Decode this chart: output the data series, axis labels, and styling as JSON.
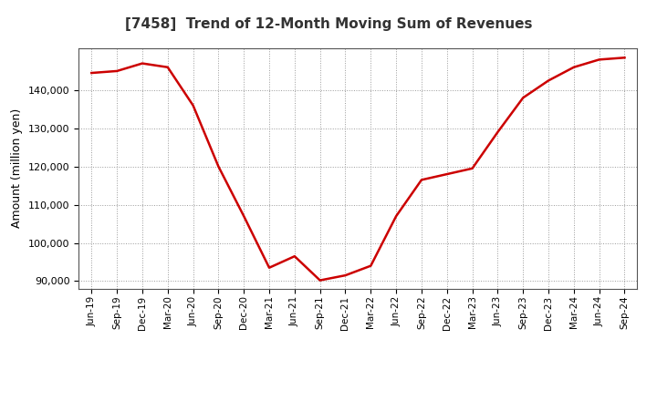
{
  "title": "[7458]  Trend of 12-Month Moving Sum of Revenues",
  "ylabel": "Amount (million yen)",
  "line_color": "#cc0000",
  "line_width": 1.8,
  "background_color": "#ffffff",
  "grid_color": "#999999",
  "ylim": [
    88000,
    151000
  ],
  "yticks": [
    90000,
    100000,
    110000,
    120000,
    130000,
    140000
  ],
  "labels": [
    "Jun-19",
    "Sep-19",
    "Dec-19",
    "Mar-20",
    "Jun-20",
    "Sep-20",
    "Dec-20",
    "Mar-21",
    "Jun-21",
    "Sep-21",
    "Dec-21",
    "Mar-22",
    "Jun-22",
    "Sep-22",
    "Dec-22",
    "Mar-23",
    "Jun-23",
    "Sep-23",
    "Dec-23",
    "Mar-24",
    "Jun-24",
    "Sep-24"
  ],
  "values": [
    144500,
    145000,
    147000,
    146000,
    136000,
    120000,
    107000,
    93500,
    96500,
    90200,
    91500,
    94000,
    107000,
    116500,
    118000,
    119500,
    129000,
    138000,
    142500,
    146000,
    148000,
    148500
  ]
}
